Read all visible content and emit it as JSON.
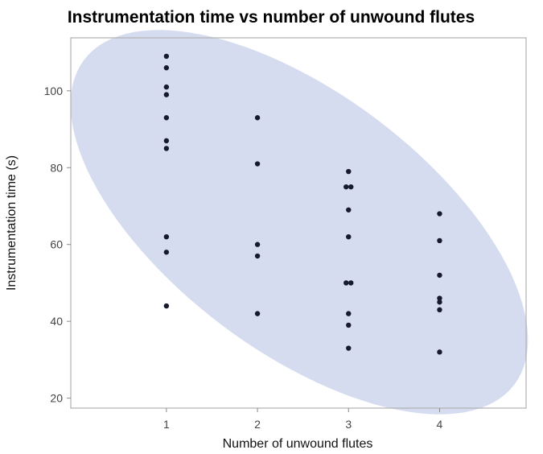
{
  "chart_data": {
    "type": "scatter",
    "title": "Instrumentation time vs number of unwound flutes",
    "xlabel": "Number of unwound flutes",
    "ylabel": "Instrumentation time (s)",
    "xlim": [
      -0.05,
      4.95
    ],
    "ylim": [
      17.4,
      113.8
    ],
    "xticks": [
      "1",
      "2",
      "3",
      "4"
    ],
    "yticks": [
      "20",
      "40",
      "60",
      "80",
      "100"
    ],
    "grid": false,
    "colors": {
      "points": "#161a2c",
      "ellipse": "#d6dcef",
      "frame": "#b0b0b0"
    },
    "points": [
      [
        1,
        109
      ],
      [
        1,
        106
      ],
      [
        1,
        101
      ],
      [
        1,
        99
      ],
      [
        1,
        93
      ],
      [
        1,
        87
      ],
      [
        1,
        85
      ],
      [
        1,
        62
      ],
      [
        1,
        58
      ],
      [
        1,
        44
      ],
      [
        2,
        93
      ],
      [
        2,
        81
      ],
      [
        2,
        60
      ],
      [
        2,
        57
      ],
      [
        2,
        42
      ],
      [
        3,
        79
      ],
      [
        3,
        75
      ],
      [
        3,
        75
      ],
      [
        3,
        69
      ],
      [
        3,
        62
      ],
      [
        3,
        50
      ],
      [
        3,
        50
      ],
      [
        3,
        42
      ],
      [
        3,
        39
      ],
      [
        3,
        33
      ],
      [
        4,
        68
      ],
      [
        4,
        61
      ],
      [
        4,
        52
      ],
      [
        4,
        46
      ],
      [
        4,
        45
      ],
      [
        4,
        43
      ],
      [
        4,
        32
      ]
    ]
  }
}
